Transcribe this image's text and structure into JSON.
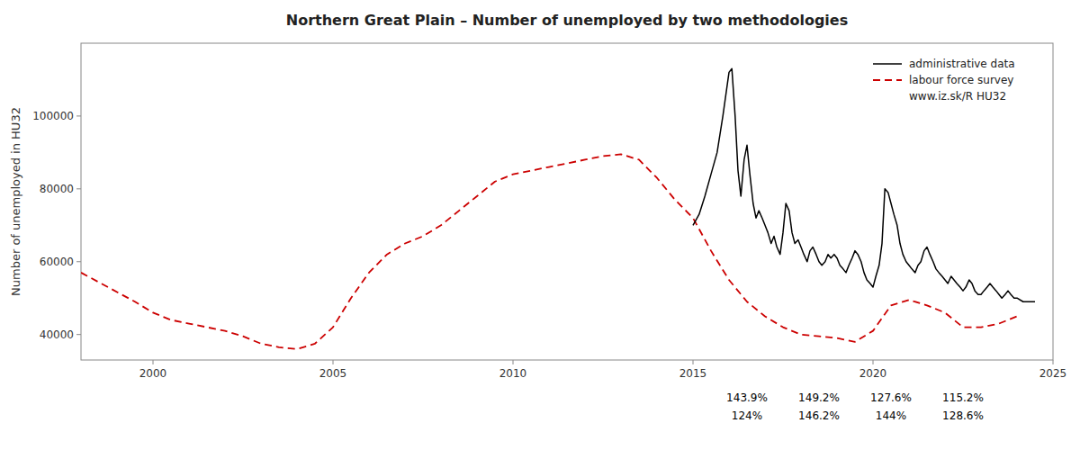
{
  "chart_data": {
    "type": "line",
    "title": "Northern Great Plain – Number of unemployed  by two methodologies",
    "y_label": "Number of unemployed in HU32",
    "ylim": [
      33000,
      120000
    ],
    "yticks": [
      40000,
      60000,
      80000,
      100000
    ],
    "xlim": [
      1998.0,
      2025.0
    ],
    "xticks": [
      2000,
      2005,
      2010,
      2015,
      2020,
      2025
    ],
    "grid": false,
    "legend": "upper right",
    "source": "www.iz.sk/R HU32",
    "annotation_rows": [
      [
        {
          "text": "143.9%",
          "x": 2016.5
        },
        {
          "text": "149.2%",
          "x": 2018.5
        },
        {
          "text": "127.6%",
          "x": 2020.5
        },
        {
          "text": "115.2%",
          "x": 2022.5
        }
      ],
      [
        {
          "text": "124%",
          "x": 2016.5
        },
        {
          "text": "146.2%",
          "x": 2018.5
        },
        {
          "text": "144%",
          "x": 2020.5
        },
        {
          "text": "128.6%",
          "x": 2022.5
        }
      ]
    ],
    "series": [
      {
        "name": "administrative data",
        "color": "#000000",
        "line_style": "solid",
        "x": [
          2015.0,
          2015.17,
          2015.33,
          2015.5,
          2015.67,
          2015.83,
          2016.0,
          2016.08,
          2016.17,
          2016.25,
          2016.33,
          2016.42,
          2016.5,
          2016.58,
          2016.67,
          2016.75,
          2016.83,
          2016.92,
          2017.0,
          2017.08,
          2017.17,
          2017.25,
          2017.33,
          2017.42,
          2017.5,
          2017.58,
          2017.67,
          2017.75,
          2017.83,
          2017.92,
          2018.0,
          2018.08,
          2018.17,
          2018.25,
          2018.33,
          2018.42,
          2018.5,
          2018.58,
          2018.67,
          2018.75,
          2018.83,
          2018.92,
          2019.0,
          2019.08,
          2019.17,
          2019.25,
          2019.33,
          2019.42,
          2019.5,
          2019.58,
          2019.67,
          2019.75,
          2019.83,
          2019.92,
          2020.0,
          2020.08,
          2020.17,
          2020.25,
          2020.33,
          2020.42,
          2020.5,
          2020.58,
          2020.67,
          2020.75,
          2020.83,
          2020.92,
          2021.0,
          2021.08,
          2021.17,
          2021.25,
          2021.33,
          2021.42,
          2021.5,
          2021.58,
          2021.67,
          2021.75,
          2021.83,
          2021.92,
          2022.0,
          2022.08,
          2022.17,
          2022.25,
          2022.33,
          2022.42,
          2022.5,
          2022.58,
          2022.67,
          2022.75,
          2022.83,
          2022.92,
          2023.0,
          2023.08,
          2023.17,
          2023.25,
          2023.33,
          2023.42,
          2023.5,
          2023.58,
          2023.67,
          2023.75,
          2023.83,
          2023.92,
          2024.0,
          2024.17,
          2024.33,
          2024.5
        ],
        "values": [
          70000,
          73000,
          78000,
          84000,
          90000,
          100000,
          112000,
          113000,
          100000,
          85000,
          78000,
          88000,
          92000,
          84000,
          76000,
          72000,
          74000,
          72000,
          70000,
          68000,
          65000,
          67000,
          64000,
          62000,
          68000,
          76000,
          74000,
          68000,
          65000,
          66000,
          64000,
          62000,
          60000,
          63000,
          64000,
          62000,
          60000,
          59000,
          60000,
          62000,
          61000,
          62000,
          61000,
          59000,
          58000,
          57000,
          59000,
          61000,
          63000,
          62000,
          60000,
          57000,
          55000,
          54000,
          53000,
          56000,
          59000,
          65000,
          80000,
          79000,
          76000,
          73000,
          70000,
          65000,
          62000,
          60000,
          59000,
          58000,
          57000,
          59000,
          60000,
          63000,
          64000,
          62000,
          60000,
          58000,
          57000,
          56000,
          55000,
          54000,
          56000,
          55000,
          54000,
          53000,
          52000,
          53000,
          55000,
          54000,
          52000,
          51000,
          51000,
          52000,
          53000,
          54000,
          53000,
          52000,
          51000,
          50000,
          51000,
          52000,
          51000,
          50000,
          50000,
          49000,
          49000,
          49000
        ]
      },
      {
        "name": "labour force survey",
        "color": "#cc0000",
        "line_style": "dashed",
        "x": [
          1998.0,
          1998.75,
          1999.5,
          2000.0,
          2000.5,
          2001.0,
          2001.5,
          2002.0,
          2002.5,
          2003.0,
          2003.5,
          2004.0,
          2004.5,
          2005.0,
          2005.5,
          2006.0,
          2006.5,
          2007.0,
          2007.5,
          2008.0,
          2008.5,
          2009.0,
          2009.5,
          2010.0,
          2010.5,
          2011.0,
          2011.5,
          2012.0,
          2012.5,
          2013.0,
          2013.5,
          2014.0,
          2014.5,
          2015.0,
          2015.5,
          2016.0,
          2016.5,
          2017.0,
          2017.5,
          2018.0,
          2018.5,
          2019.0,
          2019.5,
          2020.0,
          2020.5,
          2021.0,
          2021.5,
          2022.0,
          2022.5,
          2023.0,
          2023.5,
          2024.0
        ],
        "values": [
          57000,
          53000,
          49000,
          46000,
          44000,
          43000,
          42000,
          41000,
          39500,
          37500,
          36500,
          36000,
          37500,
          42000,
          50000,
          57000,
          62000,
          65000,
          67000,
          70000,
          74000,
          78000,
          82000,
          84000,
          85000,
          86000,
          87000,
          88000,
          89000,
          89500,
          88000,
          83000,
          77000,
          72000,
          63000,
          55000,
          49000,
          45000,
          42000,
          40000,
          39500,
          39000,
          38000,
          41000,
          48000,
          49500,
          48000,
          46000,
          42000,
          42000,
          43000,
          45000
        ]
      }
    ]
  }
}
